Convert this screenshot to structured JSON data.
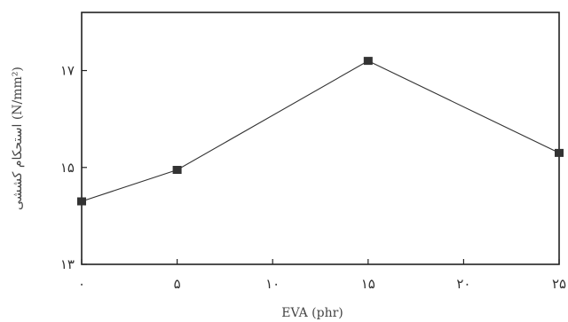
{
  "chart_data": {
    "type": "line",
    "title": "",
    "xlabel": "EVA (phr)",
    "ylabel": "استحکام کششی (N/mm²)",
    "x": [
      0,
      5,
      10,
      15,
      20,
      25
    ],
    "x_tick_labels": [
      "۰",
      "۵",
      "۱۰",
      "۱۵",
      "۲۰",
      "۲۵"
    ],
    "y_ticks": [
      13,
      15,
      17
    ],
    "y_tick_labels": [
      "۱۳",
      "۱۵",
      "۱۷"
    ],
    "xlim": [
      0,
      25
    ],
    "ylim": [
      13,
      18.2
    ],
    "grid": false,
    "series": [
      {
        "x": [
          0,
          5,
          15,
          25
        ],
        "values": [
          14.3,
          14.95,
          17.2,
          15.3
        ],
        "color": "#333333",
        "marker": "square"
      }
    ]
  }
}
